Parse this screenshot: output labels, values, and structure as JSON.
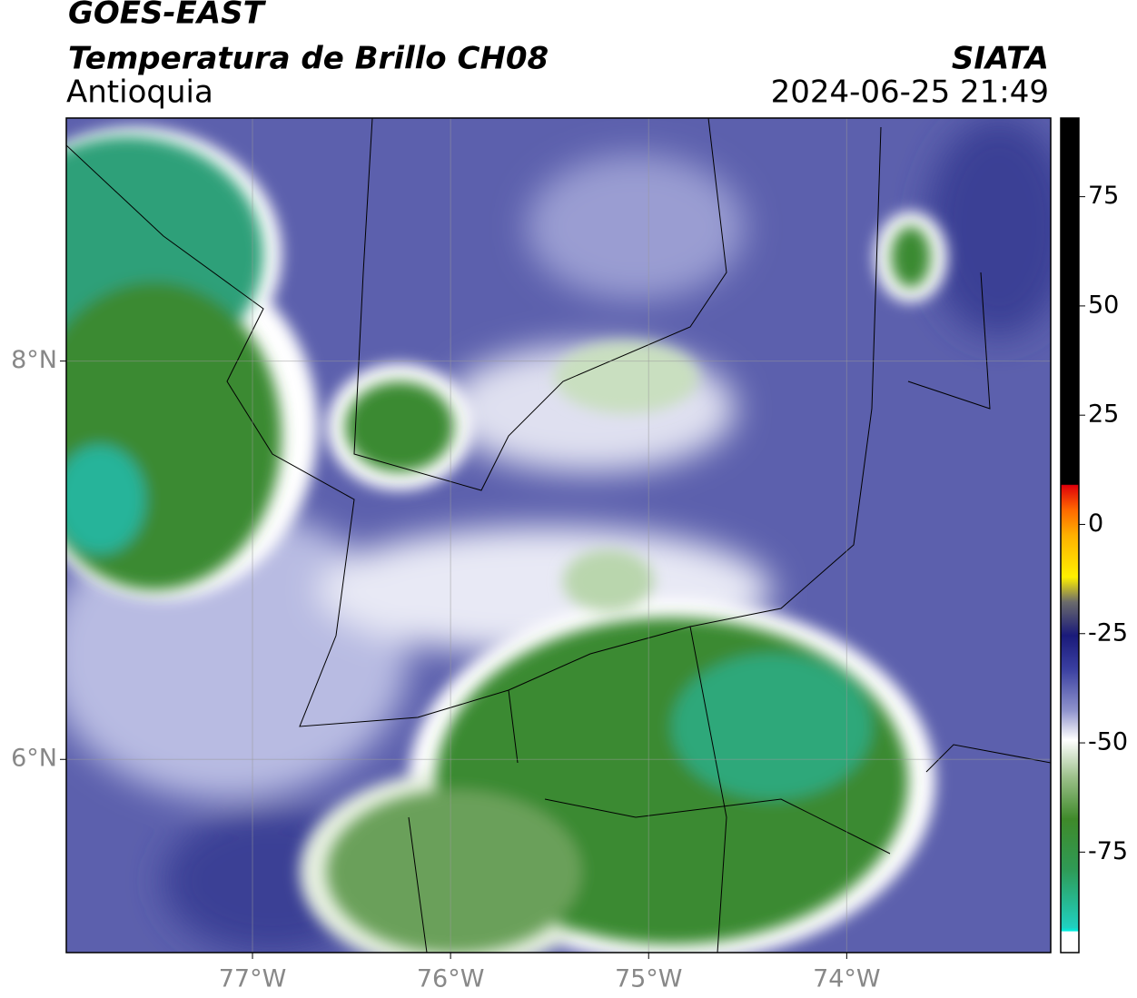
{
  "header": {
    "satellite": "GOES-EAST",
    "product": "Temperatura de Brillo CH08",
    "region": "Antioquia",
    "agency": "SIATA",
    "timestamp": "2024-06-25 21:49"
  },
  "map": {
    "xlim": [
      -77.94,
      -72.97
    ],
    "ylim": [
      5.03,
      9.22
    ],
    "xticks": [
      {
        "value": -77,
        "label": "77°W"
      },
      {
        "value": -76,
        "label": "76°W"
      },
      {
        "value": -75,
        "label": "75°W"
      },
      {
        "value": -74,
        "label": "74°W"
      }
    ],
    "yticks": [
      {
        "value": 8,
        "label": "8°N"
      },
      {
        "value": 6,
        "label": "6°N"
      }
    ]
  },
  "colorbar": {
    "lim": [
      -98,
      93
    ],
    "ticks": [
      75,
      50,
      25,
      0,
      -25,
      -50,
      -75
    ]
  }
}
